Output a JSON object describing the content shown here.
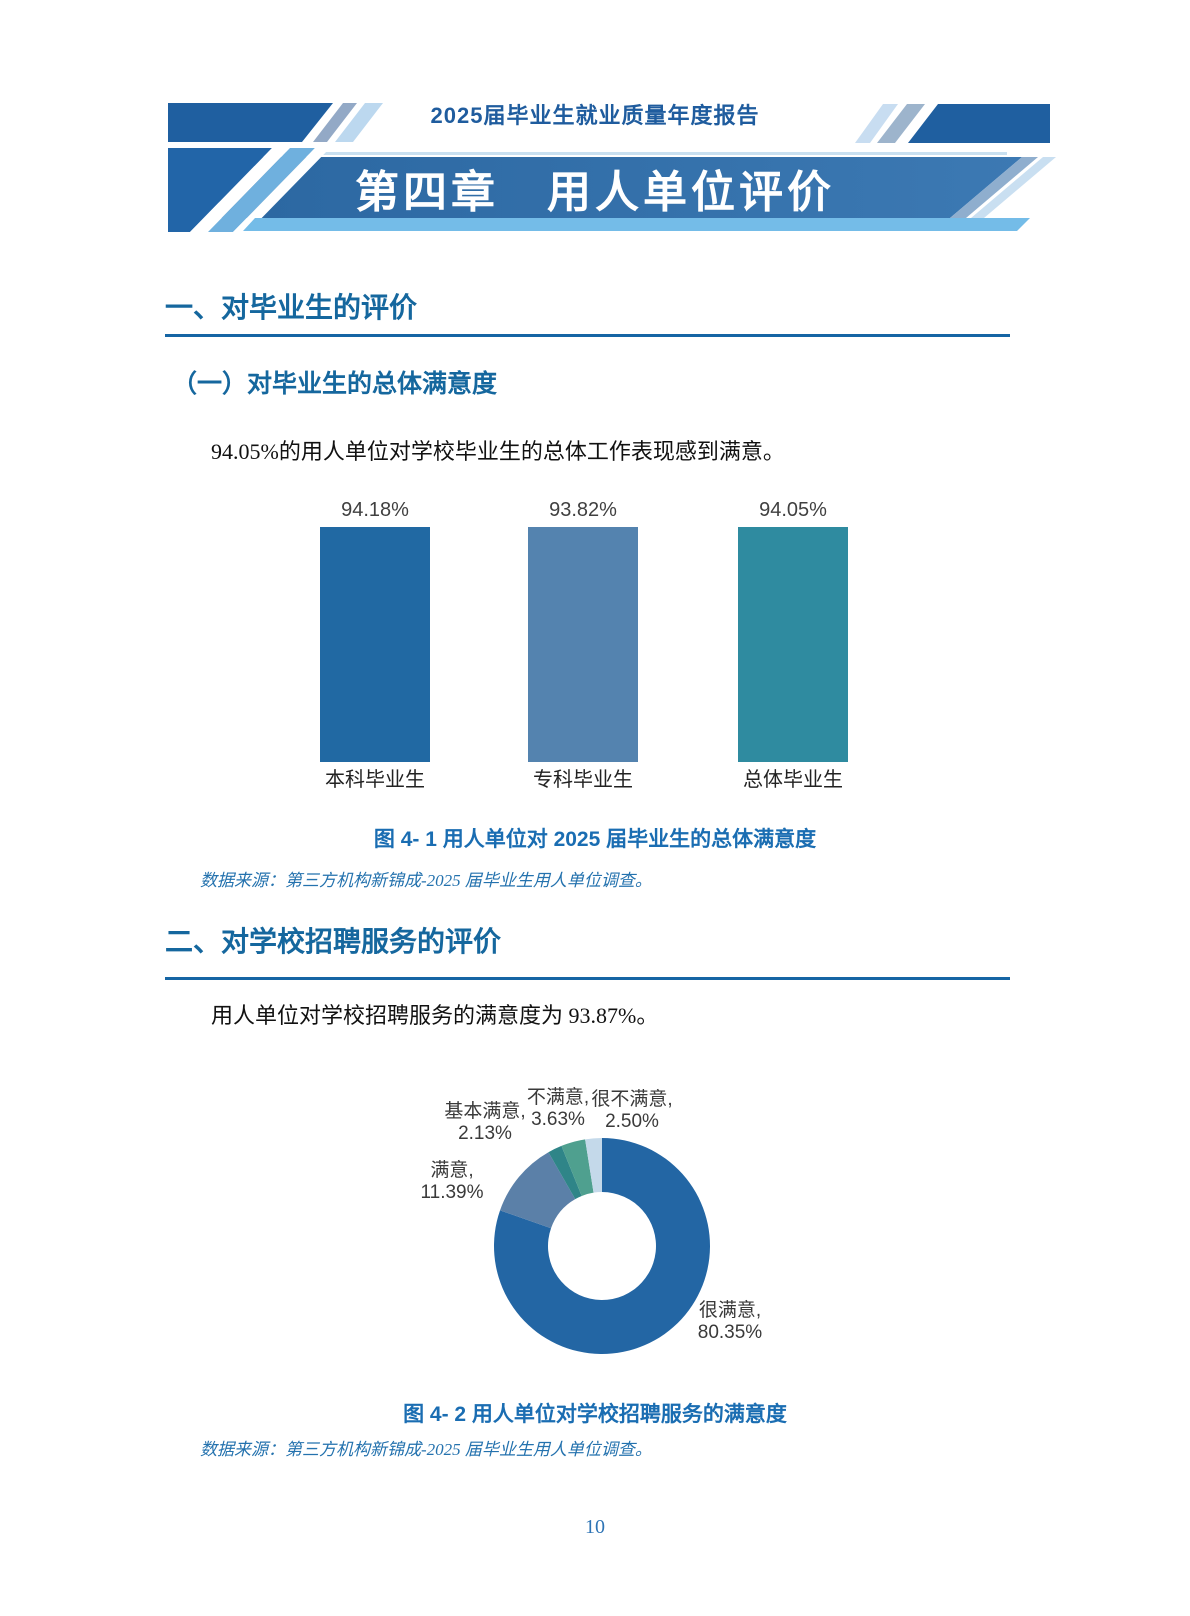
{
  "page_number": "10",
  "header": {
    "report_title": "2025届毕业生就业质量年度报告",
    "chapter_title": "第四章　用人单位评价"
  },
  "section1": {
    "heading": "一、对毕业生的评价",
    "subheading": "（一）对毕业生的总体满意度",
    "body": "94.05%的用人单位对学校毕业生的总体工作表现感到满意。"
  },
  "figure1": {
    "caption": "图 4- 1 用人单位对 2025 届毕业生的总体满意度",
    "source": "数据来源：第三方机构新锦成-2025 届毕业生用人单位调查。"
  },
  "section2": {
    "heading": "二、对学校招聘服务的评价",
    "body": "用人单位对学校招聘服务的满意度为 93.87%。"
  },
  "figure2": {
    "caption": "图 4- 2 用人单位对学校招聘服务的满意度",
    "source": "数据来源：第三方机构新锦成-2025 届毕业生用人单位调查。"
  },
  "chart_data": [
    {
      "type": "bar",
      "title": "用人单位对2025届毕业生的总体满意度",
      "categories": [
        "本科毕业生",
        "专科毕业生",
        "总体毕业生"
      ],
      "values": [
        94.18,
        93.82,
        94.05
      ],
      "value_labels": [
        "94.18%",
        "93.82%",
        "94.05%"
      ],
      "colors": [
        "#2169A3",
        "#5483AF",
        "#2F8BA0"
      ],
      "ylim": [
        0,
        100
      ],
      "grid": false,
      "legend": "none"
    },
    {
      "type": "pie",
      "subtype": "donut",
      "title": "用人单位对学校招聘服务的满意度",
      "start_angle_deg": 0,
      "direction": "clockwise",
      "inner_radius_ratio": 0.5,
      "slices": [
        {
          "label": "很满意",
          "value": 80.35,
          "display": "很满意,",
          "value_label": "80.35%",
          "color": "#2366A4"
        },
        {
          "label": "满意",
          "value": 11.39,
          "display": "满意,",
          "value_label": "11.39%",
          "color": "#5B80A8"
        },
        {
          "label": "基本满意",
          "value": 2.13,
          "display": "基本满意,",
          "value_label": "2.13%",
          "color": "#2F8588"
        },
        {
          "label": "不满意",
          "value": 3.63,
          "display": "不满意,",
          "value_label": "3.63%",
          "color": "#4FA08F"
        },
        {
          "label": "很不满意",
          "value": 2.5,
          "display": "很不满意,",
          "value_label": "2.50%",
          "color": "#C4D9EA"
        }
      ]
    }
  ]
}
